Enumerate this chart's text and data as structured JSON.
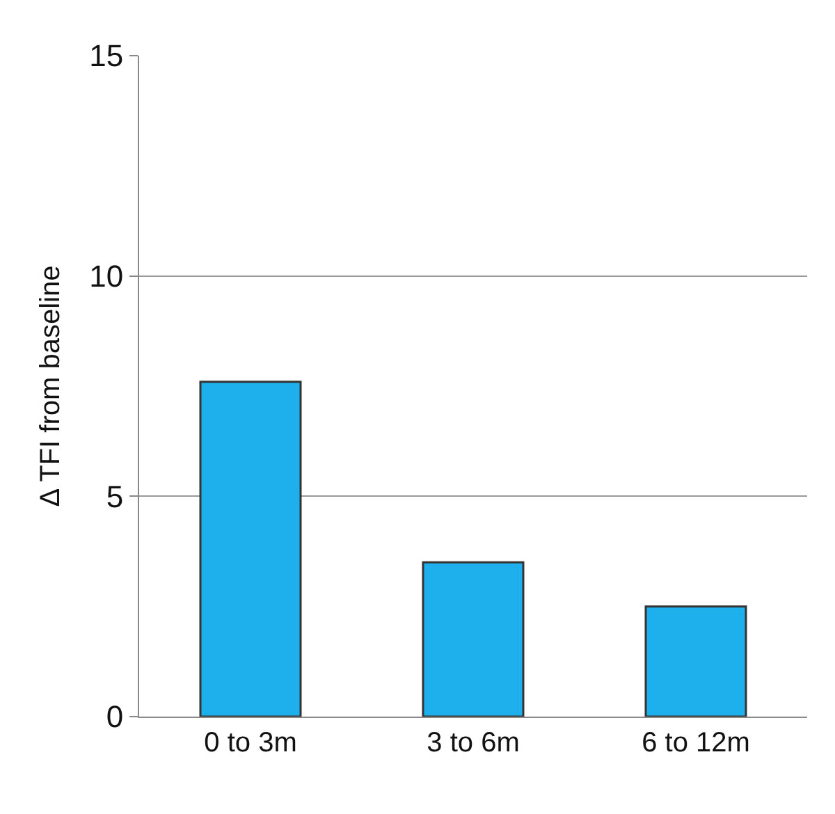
{
  "chart_data": {
    "type": "bar",
    "ylabel": "Δ TFI from baseline",
    "categories": [
      "0 to 3m",
      "3 to 6m",
      "6 to 12m"
    ],
    "values": [
      7.6,
      3.5,
      2.5
    ],
    "color": "#1eb0ec",
    "ylim": [
      0,
      15
    ],
    "yticks": [
      0,
      5,
      10,
      15
    ],
    "grid": "y",
    "legend": false
  }
}
